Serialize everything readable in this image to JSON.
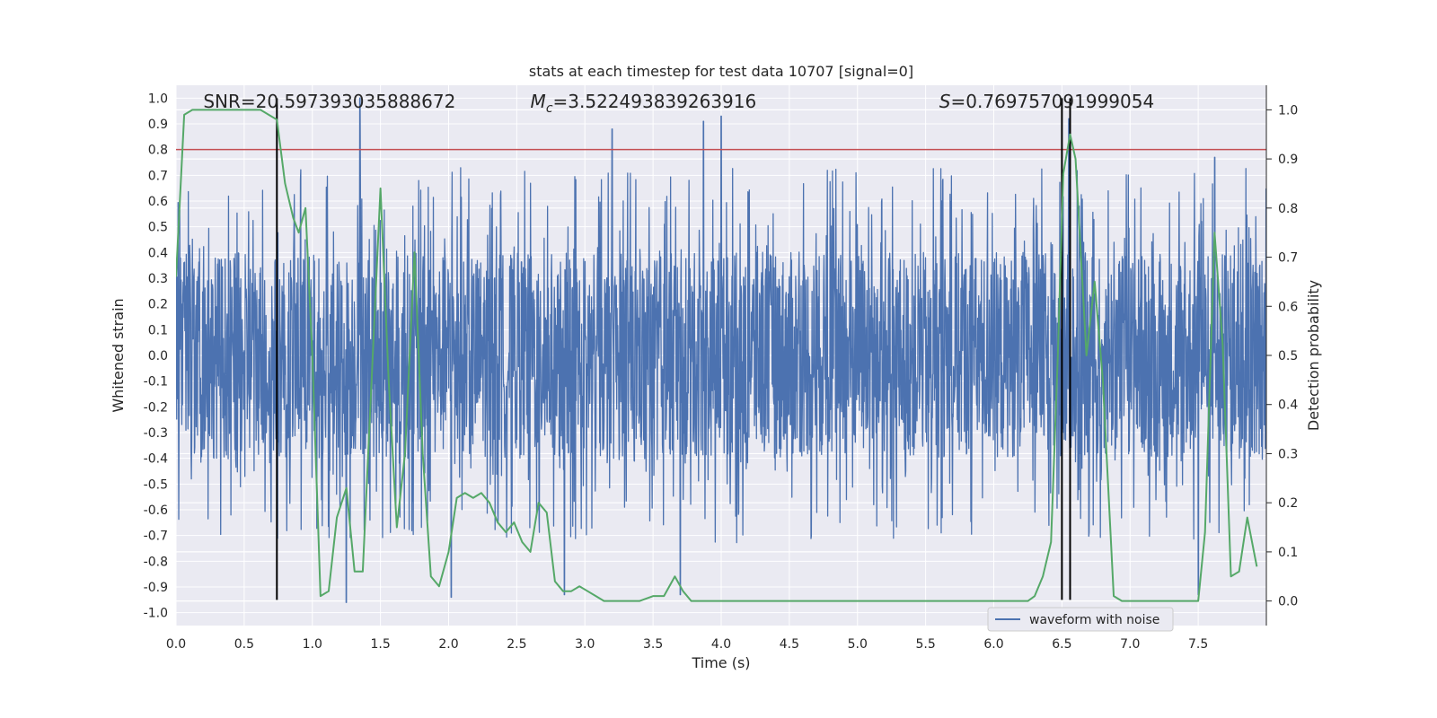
{
  "chart_data": {
    "type": "line",
    "title": "stats at each timestep for test data 10707 [signal=0]",
    "xlabel": "Time (s)",
    "ylabel_left": "Whitened strain",
    "ylabel_right": "Detection probability",
    "xlim": [
      0.0,
      8.0
    ],
    "ylim_left": [
      -1.05,
      1.05
    ],
    "ylim_right": [
      -0.05,
      1.05
    ],
    "x_ticks": [
      "0.0",
      "0.5",
      "1.0",
      "1.5",
      "2.0",
      "2.5",
      "3.0",
      "3.5",
      "4.0",
      "4.5",
      "5.0",
      "5.5",
      "6.0",
      "6.5",
      "7.0",
      "7.5"
    ],
    "y_left_ticks": [
      "-1.0",
      "-0.9",
      "-0.8",
      "-0.7",
      "-0.6",
      "-0.5",
      "-0.4",
      "-0.3",
      "-0.2",
      "-0.1",
      "0.0",
      "0.1",
      "0.2",
      "0.3",
      "0.4",
      "0.5",
      "0.6",
      "0.7",
      "0.8",
      "0.9",
      "1.0"
    ],
    "y_right_ticks": [
      "0.0",
      "0.1",
      "0.2",
      "0.3",
      "0.4",
      "0.5",
      "0.6",
      "0.7",
      "0.8",
      "0.9",
      "1.0"
    ],
    "grid": true,
    "legend_position": "lower-right",
    "annotations": {
      "snr": "SNR=20.597393035888672",
      "mc_symbol": "M",
      "mc_sub": "c",
      "mc_value": "=3.522493839263916",
      "s_symbol": "S",
      "s_value": "=0.769757091999054"
    },
    "threshold": {
      "axis": "left",
      "y": 0.8,
      "color": "#c44e52"
    },
    "vertical_lines": {
      "x": [
        0.74,
        6.5,
        6.56
      ],
      "color": "#000000"
    },
    "series": [
      {
        "name": "waveform with noise",
        "axis": "left",
        "color": "#4c72b0",
        "style": "dense noise trace",
        "envelope": {
          "typical_abs": 0.4,
          "spikes": [
            {
              "x": 1.35,
              "y": 1.0
            },
            {
              "x": 3.2,
              "y": 0.88
            },
            {
              "x": 3.87,
              "y": 0.91
            },
            {
              "x": 4.0,
              "y": 0.93
            },
            {
              "x": 6.55,
              "y": 0.92
            },
            {
              "x": 7.62,
              "y": 0.77
            },
            {
              "x": 1.25,
              "y": -0.96
            },
            {
              "x": 2.02,
              "y": -0.94
            },
            {
              "x": 2.85,
              "y": -0.93
            },
            {
              "x": 3.7,
              "y": -0.93
            },
            {
              "x": 7.5,
              "y": -0.93
            }
          ]
        }
      },
      {
        "name": "detection probability",
        "axis": "right",
        "color": "#55a868",
        "x": [
          0.0,
          0.06,
          0.12,
          0.2,
          0.3,
          0.4,
          0.5,
          0.62,
          0.68,
          0.74,
          0.8,
          0.86,
          0.9,
          0.95,
          1.0,
          1.06,
          1.12,
          1.18,
          1.25,
          1.31,
          1.37,
          1.43,
          1.5,
          1.56,
          1.62,
          1.68,
          1.75,
          1.81,
          1.87,
          1.93,
          2.0,
          2.06,
          2.12,
          2.18,
          2.24,
          2.3,
          2.36,
          2.42,
          2.48,
          2.54,
          2.6,
          2.66,
          2.72,
          2.78,
          2.84,
          2.9,
          2.96,
          3.02,
          3.08,
          3.14,
          3.2,
          3.3,
          3.4,
          3.5,
          3.58,
          3.66,
          3.72,
          3.78,
          3.86,
          3.94,
          4.0,
          4.2,
          4.5,
          4.7,
          4.9,
          5.1,
          5.3,
          5.5,
          5.7,
          5.9,
          6.1,
          6.25,
          6.3,
          6.36,
          6.42,
          6.47,
          6.51,
          6.56,
          6.6,
          6.68,
          6.74,
          6.8,
          6.88,
          6.94,
          7.0,
          7.1,
          7.2,
          7.3,
          7.4,
          7.5,
          7.55,
          7.62,
          7.68,
          7.74,
          7.8,
          7.86,
          7.93
        ],
        "y": [
          0.66,
          0.99,
          1.0,
          1.0,
          1.0,
          1.0,
          1.0,
          1.0,
          0.99,
          0.98,
          0.85,
          0.78,
          0.75,
          0.8,
          0.5,
          0.01,
          0.02,
          0.17,
          0.23,
          0.06,
          0.06,
          0.42,
          0.84,
          0.45,
          0.15,
          0.3,
          0.71,
          0.3,
          0.05,
          0.03,
          0.1,
          0.21,
          0.22,
          0.21,
          0.22,
          0.2,
          0.16,
          0.14,
          0.16,
          0.12,
          0.1,
          0.2,
          0.18,
          0.04,
          0.02,
          0.02,
          0.03,
          0.02,
          0.01,
          0.0,
          0.0,
          0.0,
          0.0,
          0.01,
          0.01,
          0.05,
          0.02,
          0.0,
          0.0,
          0.0,
          0.0,
          0.0,
          0.0,
          0.0,
          0.0,
          0.0,
          0.0,
          0.0,
          0.0,
          0.0,
          0.0,
          0.0,
          0.01,
          0.05,
          0.12,
          0.5,
          0.87,
          0.95,
          0.9,
          0.5,
          0.65,
          0.45,
          0.01,
          0.0,
          0.0,
          0.0,
          0.0,
          0.0,
          0.0,
          0.0,
          0.14,
          0.75,
          0.52,
          0.05,
          0.06,
          0.17,
          0.07
        ]
      }
    ]
  }
}
